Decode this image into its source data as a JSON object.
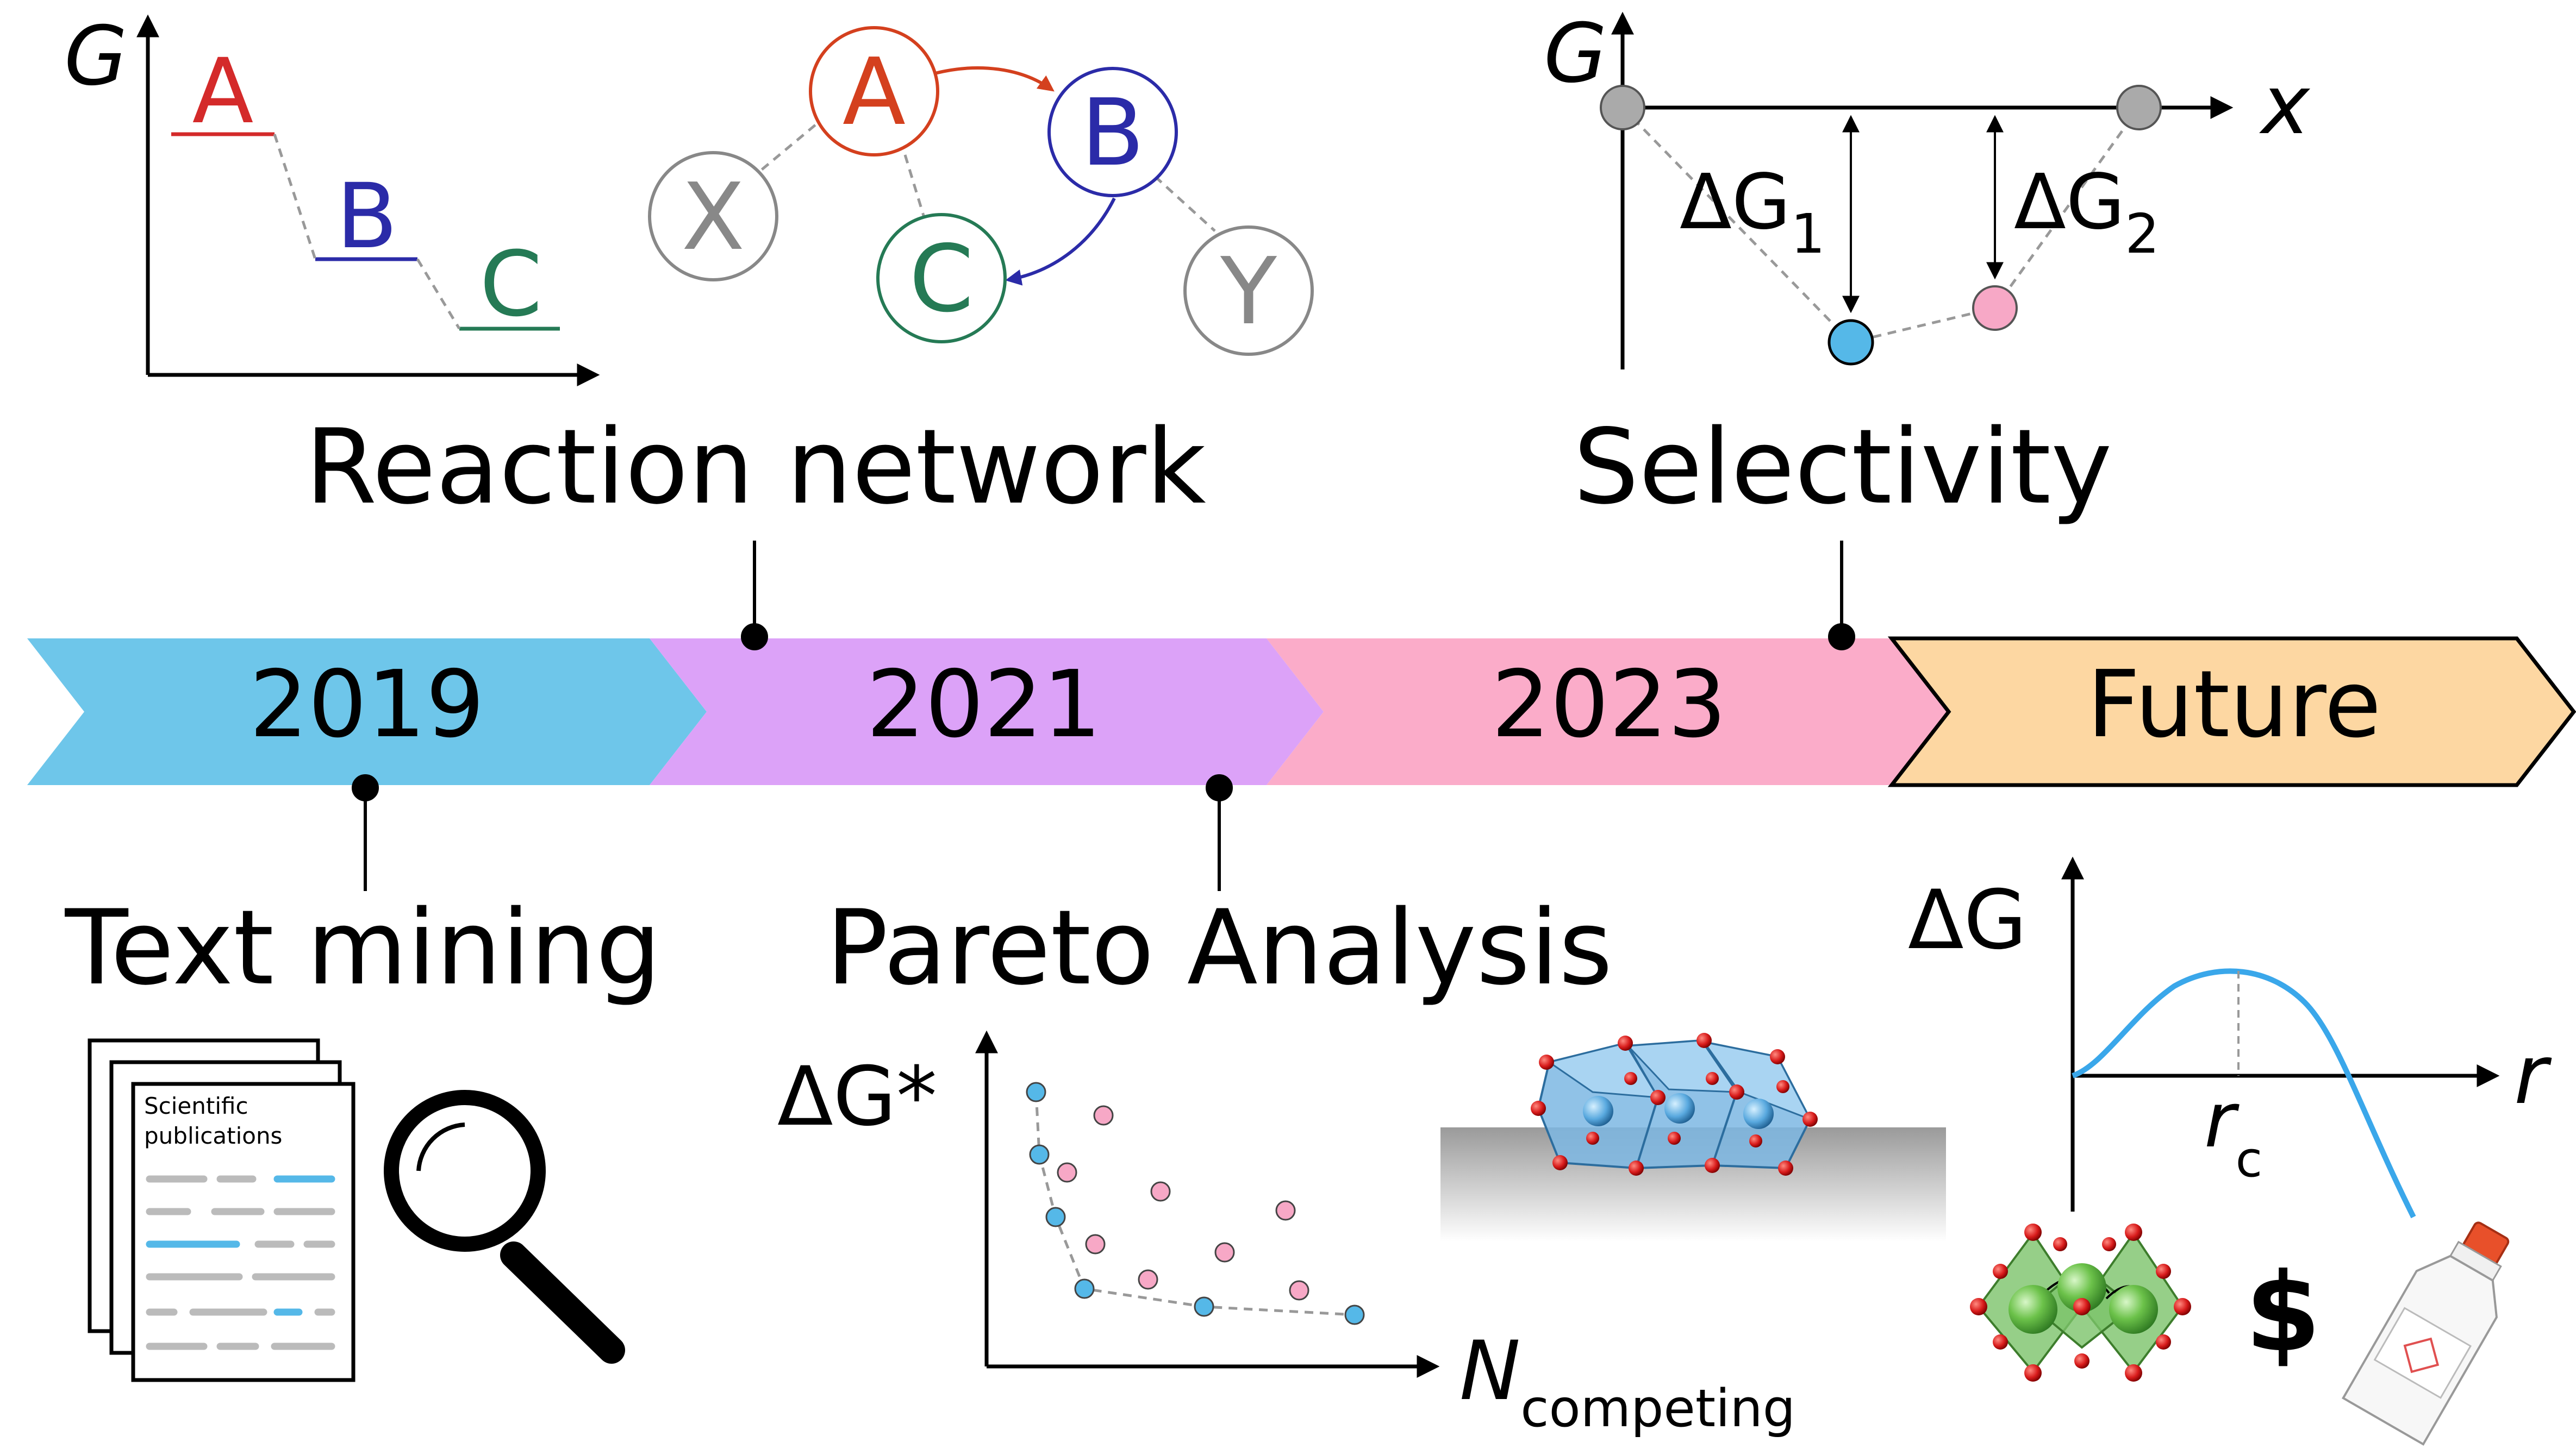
{
  "timeline": {
    "segments": [
      {
        "label": "2019",
        "color": "#6ec6ea"
      },
      {
        "label": "2021",
        "color": "#dca2f8"
      },
      {
        "label": "2023",
        "color": "#fbacc9"
      },
      {
        "label": "Future",
        "color": "#fdd7a2"
      }
    ]
  },
  "top_labels": {
    "reaction_network": "Reaction network",
    "selectivity": "Selectivity"
  },
  "bottom_labels": {
    "text_mining": "Text mining",
    "pareto": "Pareto Analysis"
  },
  "energy_ladder": {
    "axis_label": "G",
    "levels": [
      {
        "label": "A",
        "color": "#d42a2a"
      },
      {
        "label": "B",
        "color": "#2b2ba8"
      },
      {
        "label": "C",
        "color": "#257a55"
      }
    ]
  },
  "network": {
    "nodes": [
      {
        "label": "A",
        "color": "#d4401e"
      },
      {
        "label": "B",
        "color": "#2b2ba8"
      },
      {
        "label": "C",
        "color": "#257a55"
      },
      {
        "label": "X",
        "color": "#888888"
      },
      {
        "label": "Y",
        "color": "#888888"
      }
    ]
  },
  "selectivity_plot": {
    "y_label": "G",
    "x_label": "x",
    "delta1": {
      "base": "ΔG",
      "sub": "1"
    },
    "delta2": {
      "base": "ΔG",
      "sub": "2"
    },
    "point_colors": {
      "endpoint": "#aaaaaa",
      "low": "#55b8e8",
      "high": "#f7a8c6"
    }
  },
  "document": {
    "line1": "Scientific",
    "line2": "publications",
    "highlight_color": "#55b8e8"
  },
  "pareto_plot": {
    "y_label": "ΔG*",
    "x_label_base": "N",
    "x_label_sub": "competing",
    "pareto_color": "#55b8e8",
    "other_color": "#f7a8c6"
  },
  "nucleation_plot": {
    "y_label": "ΔG",
    "x_label": "r",
    "rc_base": "r",
    "rc_sub": "c",
    "curve_color": "#3aa7ea"
  },
  "future_icons": {
    "dollar": "$",
    "crystal_icon": "crystal-structure-icon",
    "bottle_icon": "reagent-bottle-icon"
  }
}
